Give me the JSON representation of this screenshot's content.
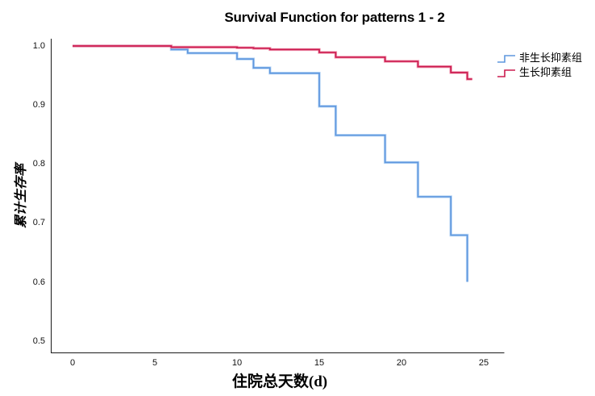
{
  "header": {
    "title": "Survival Function for patterns 1 - 2"
  },
  "chart_data": {
    "type": "line",
    "subtype": "kaplan-meier-step",
    "title": "Survival Function for patterns 1 - 2",
    "xlabel": "住院总天数(d)",
    "ylabel": "累计生存率",
    "xlim": [
      -1.3,
      26.2
    ],
    "ylim": [
      0.48,
      1.01
    ],
    "grid": false,
    "legend_position": "right",
    "xticks": [
      0,
      5,
      10,
      15,
      20,
      25
    ],
    "xtick_labels": [
      "0",
      "5",
      "10",
      "15",
      "20",
      "25"
    ],
    "ytick_values": [
      1.0,
      0.9,
      0.8,
      0.7,
      0.6,
      0.5
    ],
    "ytick_labels": [
      "1.0",
      "0.9",
      "0.8",
      "0.7",
      "0.6",
      "0.5"
    ],
    "axis_color": "#1a1a1a",
    "series": [
      {
        "name": "非生长抑素组",
        "color": "#5e97de",
        "halo": "#bcd8f6",
        "tail_days": 0,
        "points": [
          [
            0,
            1.0
          ],
          [
            6,
            0.994
          ],
          [
            7,
            0.988
          ],
          [
            10,
            0.978
          ],
          [
            11,
            0.963
          ],
          [
            12,
            0.954
          ],
          [
            15,
            0.898
          ],
          [
            16,
            0.849
          ],
          [
            19,
            0.803
          ],
          [
            21,
            0.745
          ],
          [
            23,
            0.68
          ],
          [
            24,
            0.601
          ]
        ]
      },
      {
        "name": "生长抑素组",
        "color": "#cb1b4f",
        "halo": "#f29db4",
        "tail_days": 0.3,
        "points": [
          [
            0,
            1.0
          ],
          [
            6,
            0.998
          ],
          [
            10,
            0.997
          ],
          [
            11,
            0.996
          ],
          [
            12,
            0.994
          ],
          [
            15,
            0.989
          ],
          [
            16,
            0.981
          ],
          [
            19,
            0.974
          ],
          [
            21,
            0.965
          ],
          [
            23,
            0.955
          ],
          [
            24,
            0.944
          ]
        ]
      }
    ]
  }
}
